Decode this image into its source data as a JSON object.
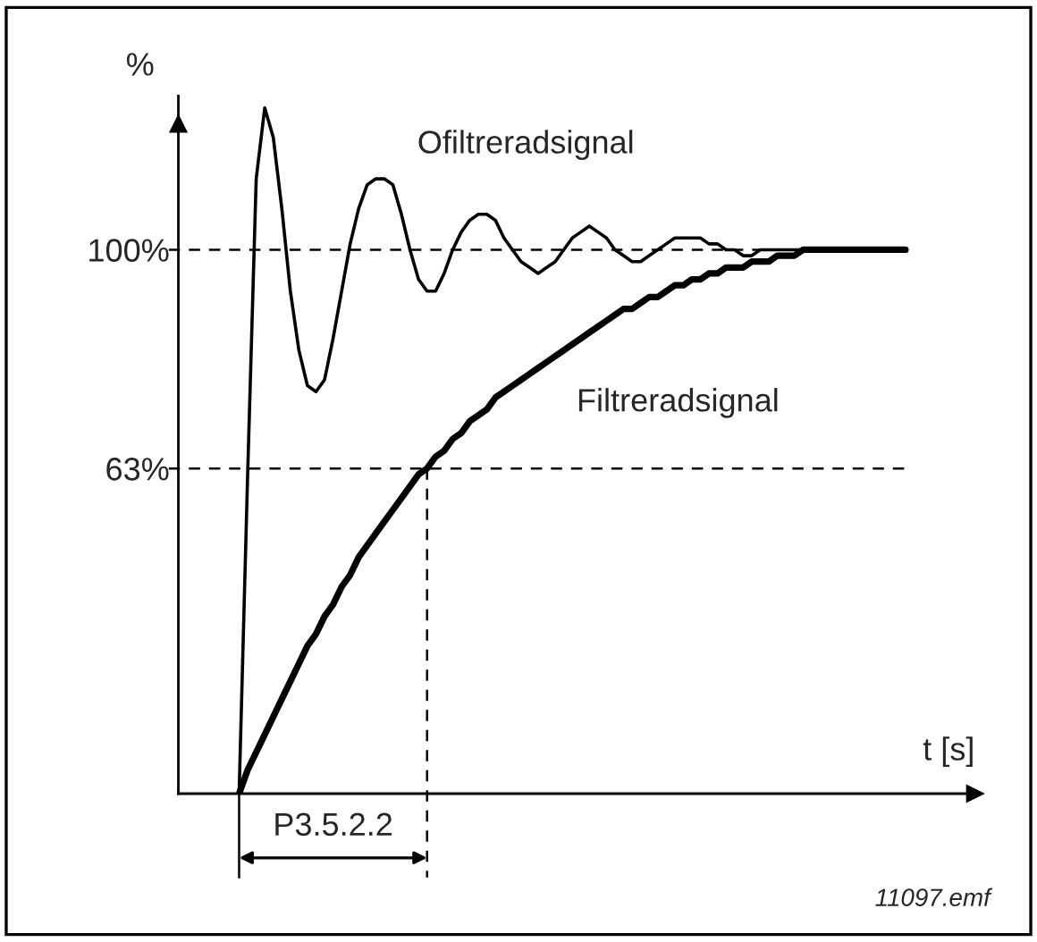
{
  "chart_data": {
    "type": "line",
    "ylabel": "%",
    "xlabel": "t [s]",
    "categories": [
      null,
      null,
      null,
      null,
      null,
      null,
      null,
      null,
      null,
      null,
      null,
      null,
      null,
      null,
      null,
      null,
      null,
      null,
      null,
      null,
      null,
      null,
      null,
      null,
      null,
      null,
      null,
      null,
      null,
      null,
      null,
      null,
      null,
      null,
      null,
      null,
      null,
      null,
      null,
      null,
      null,
      null,
      null,
      null,
      null,
      null,
      null,
      null,
      null,
      null,
      null,
      null,
      null,
      null,
      null,
      null,
      null,
      null,
      null,
      null,
      null,
      null,
      null,
      null,
      null,
      null,
      null,
      null,
      null,
      null,
      null,
      null,
      null,
      null,
      null,
      null,
      null,
      null,
      null
    ],
    "series": [
      {
        "name": "Ofiltreradsignal",
        "color": "#000000",
        "values": [
          8,
          62,
          112,
          124,
          119,
          107,
          93,
          83,
          77,
          76,
          78,
          85,
          93,
          101,
          107,
          111,
          112,
          112,
          111,
          106,
          100,
          95,
          93,
          93,
          96,
          100,
          103,
          105,
          106,
          106,
          105,
          102,
          100,
          98,
          97,
          96,
          97,
          98,
          100,
          102,
          103,
          104,
          103,
          102,
          100,
          99,
          98,
          98,
          99,
          100,
          101,
          102,
          102,
          102,
          102,
          101,
          101,
          100,
          100,
          99,
          99,
          100,
          100,
          100,
          100,
          100,
          100,
          100,
          100,
          100,
          100,
          100,
          100,
          100,
          100,
          100,
          100,
          100,
          100
        ]
      },
      {
        "name": "Filtreradsignal",
        "color": "#000000",
        "values": [
          8,
          12,
          15,
          18,
          21,
          24,
          27,
          30,
          33,
          35,
          38,
          40,
          43,
          45,
          48,
          50,
          52,
          54,
          56,
          58,
          60,
          62,
          63,
          65,
          66,
          68,
          69,
          71,
          72,
          73,
          75,
          76,
          77,
          78,
          79,
          80,
          81,
          82,
          83,
          84,
          85,
          86,
          87,
          88,
          89,
          90,
          90,
          91,
          92,
          92,
          93,
          94,
          94,
          95,
          95,
          96,
          96,
          97,
          97,
          97,
          98,
          98,
          98,
          99,
          99,
          99,
          100,
          100,
          100,
          100,
          100,
          100,
          100,
          100,
          100,
          100,
          100,
          100,
          100
        ]
      }
    ],
    "ylim": [
      8,
      126
    ],
    "yticks": [
      {
        "value": 63,
        "label": "63%"
      },
      {
        "value": 100,
        "label": "100%"
      }
    ],
    "tick_labels": "y",
    "grid": false,
    "legend": false,
    "marker": "none",
    "line_style": "solid",
    "ref_lines": [
      {
        "axis": "y",
        "value": 100,
        "color": "#000000",
        "line_style": "dashed"
      },
      {
        "axis": "y",
        "value": 63,
        "color": "#000000",
        "line_style": "dashed"
      }
    ],
    "annotations": [
      "P3.5.2.2",
      "11097.emf"
    ]
  }
}
